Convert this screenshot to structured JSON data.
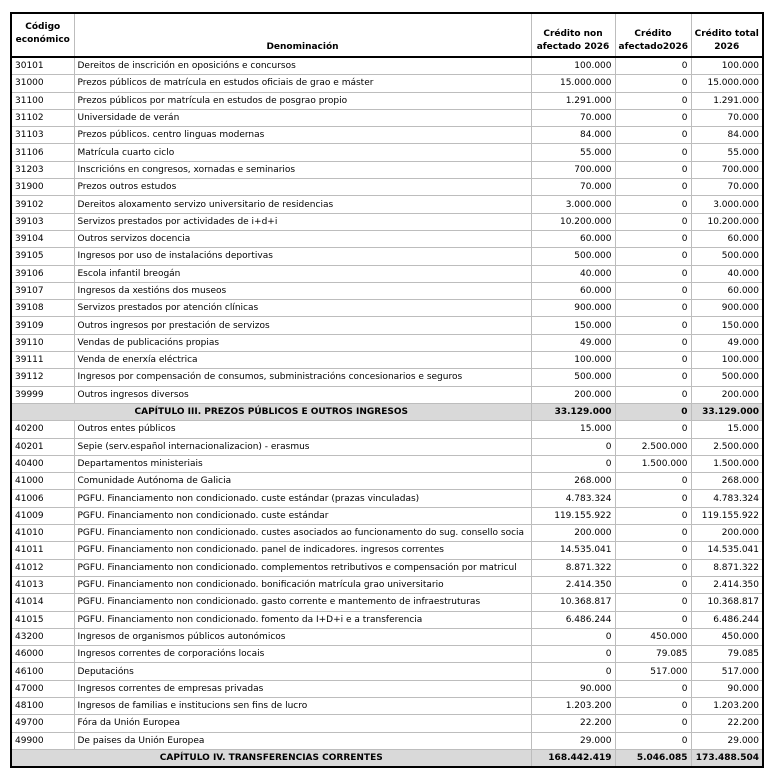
{
  "table": {
    "headers": [
      "Código económico",
      "Denominación",
      "Crédito non afectado 2026",
      "Crédito afectado2026",
      "Crédito total 2026"
    ],
    "rows": [
      [
        "30101",
        "Dereitos de inscrición en oposicións e concursos",
        "100.000",
        "0",
        "100.000"
      ],
      [
        "31000",
        "Prezos públicos de matrícula en estudos oficiais de grao e máster",
        "15.000.000",
        "0",
        "15.000.000"
      ],
      [
        "31100",
        "Prezos públicos por matrícula en estudos de posgrao propio",
        "1.291.000",
        "0",
        "1.291.000"
      ],
      [
        "31102",
        "Universidade de verán",
        "70.000",
        "0",
        "70.000"
      ],
      [
        "31103",
        "Prezos públicos. centro linguas modernas",
        "84.000",
        "0",
        "84.000"
      ],
      [
        "31106",
        "Matrícula cuarto ciclo",
        "55.000",
        "0",
        "55.000"
      ],
      [
        "31203",
        "Inscricións en congresos, xornadas e seminarios",
        "700.000",
        "0",
        "700.000"
      ],
      [
        "31900",
        "Prezos outros estudos",
        "70.000",
        "0",
        "70.000"
      ],
      [
        "39102",
        "Dereitos aloxamento servizo universitario de residencias",
        "3.000.000",
        "0",
        "3.000.000"
      ],
      [
        "39103",
        "Servizos prestados por actividades de i+d+i",
        "10.200.000",
        "0",
        "10.200.000"
      ],
      [
        "39104",
        "Outros servizos docencia",
        "60.000",
        "0",
        "60.000"
      ],
      [
        "39105",
        "Ingresos por uso de instalacións deportivas",
        "500.000",
        "0",
        "500.000"
      ],
      [
        "39106",
        "Escola infantil breogán",
        "40.000",
        "0",
        "40.000"
      ],
      [
        "39107",
        "Ingresos da xestións dos museos",
        "60.000",
        "0",
        "60.000"
      ],
      [
        "39108",
        "Servizos prestados por atención clínicas",
        "900.000",
        "0",
        "900.000"
      ],
      [
        "39109",
        "Outros ingresos por prestación de servizos",
        "150.000",
        "0",
        "150.000"
      ],
      [
        "39110",
        "Vendas de publicacións propias",
        "49.000",
        "0",
        "49.000"
      ],
      [
        "39111",
        "Venda de enerxía eléctrica",
        "100.000",
        "0",
        "100.000"
      ],
      [
        "39112",
        "Ingresos por compensación de consumos, subministracións concesionarios  e seguros",
        "500.000",
        "0",
        "500.000"
      ],
      [
        "39999",
        "Outros ingresos diversos",
        "200.000",
        "0",
        "200.000"
      ],
      [
        "CAPÍTULO III. PREZOS PÚBLICOS E OUTROS INGRESOS",
        "33.129.000",
        "0",
        "33.129.000"
      ],
      [
        "40200",
        "Outros entes públicos",
        "15.000",
        "0",
        "15.000"
      ],
      [
        "40201",
        "Sepie (serv.español internacionalizacion) - erasmus",
        "0",
        "2.500.000",
        "2.500.000"
      ],
      [
        "40400",
        "Departamentos ministeriais",
        "0",
        "1.500.000",
        "1.500.000"
      ],
      [
        "41000",
        "Comunidade Autónoma de Galicia",
        "268.000",
        "0",
        "268.000"
      ],
      [
        "41006",
        "PGFU. Financiamento non condicionado. custe estándar (prazas vinculadas)",
        "4.783.324",
        "0",
        "4.783.324"
      ],
      [
        "41009",
        "PGFU. Financiamento non condicionado. custe estándar",
        "119.155.922",
        "0",
        "119.155.922"
      ],
      [
        "41010",
        "PGFU. Financiamento non condicionado. custes asociados ao funcionamento do sug. consello socia",
        "200.000",
        "0",
        "200.000"
      ],
      [
        "41011",
        "PGFU. Financiamento non condicionado. panel de indicadores. ingresos correntes",
        "14.535.041",
        "0",
        "14.535.041"
      ],
      [
        "41012",
        "PGFU. Financiamento non condicionado. complementos retributivos e compensación por matricul",
        "8.871.322",
        "0",
        "8.871.322"
      ],
      [
        "41013",
        "PGFU. Financiamento non condicionado. bonificación matrícula grao universitario",
        "2.414.350",
        "0",
        "2.414.350"
      ],
      [
        "41014",
        "PGFU. Financiamento non condicionado. gasto corrente e mantemento de infraestruturas",
        "10.368.817",
        "0",
        "10.368.817"
      ],
      [
        "41015",
        "PGFU. Financiamento non condicionado. fomento da I+D+i e a transferencia",
        "6.486.244",
        "0",
        "6.486.244"
      ],
      [
        "43200",
        "Ingresos de organismos públicos autonómicos",
        "0",
        "450.000",
        "450.000"
      ],
      [
        "46000",
        "Ingresos correntes de corporacións locais",
        "0",
        "79.085",
        "79.085"
      ],
      [
        "46100",
        "Deputacións",
        "0",
        "517.000",
        "517.000"
      ],
      [
        "47000",
        "Ingresos correntes de empresas privadas",
        "90.000",
        "0",
        "90.000"
      ],
      [
        "48100",
        "Ingresos de familias e institucions sen fins de lucro",
        "1.203.200",
        "0",
        "1.203.200"
      ],
      [
        "49700",
        "Fóra da Unión Europea",
        "22.200",
        "0",
        "22.200"
      ],
      [
        "49900",
        "De paises da Unión Europea",
        "29.000",
        "0",
        "29.000"
      ],
      [
        "CAPÍTULO IV. TRANSFERENCIAS CORRENTES",
        "168.442.419",
        "5.046.085",
        "173.488.504"
      ]
    ]
  }
}
